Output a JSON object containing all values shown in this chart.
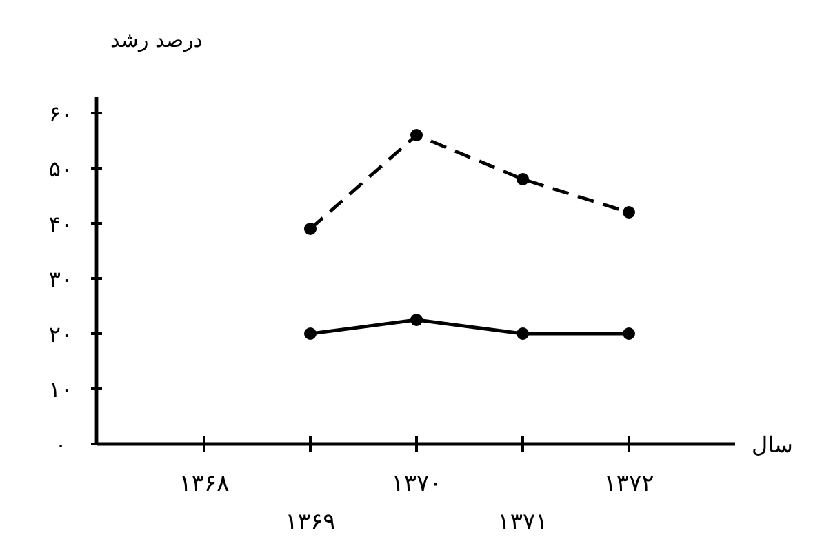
{
  "chart_data": {
    "type": "line",
    "xlabel": "سال",
    "ylabel": "درصد رشد",
    "categories": [
      "۱۳۶۸",
      "۱۳۶۹",
      "۱۳۷۰",
      "۱۳۷۱",
      "۱۳۷۲"
    ],
    "series": [
      {
        "color": "#000000",
        "line_style": "dashed",
        "values": [
          null,
          39,
          56,
          48,
          42
        ]
      },
      {
        "color": "#000000",
        "line_style": "solid",
        "values": [
          null,
          20,
          22.5,
          20,
          20
        ]
      }
    ],
    "ylim": [
      0,
      63
    ],
    "yticks": [
      {
        "value": 0,
        "label": "۰"
      },
      {
        "value": 10,
        "label": "۱۰"
      },
      {
        "value": 20,
        "label": "۲۰"
      },
      {
        "value": 30,
        "label": "۳۰"
      },
      {
        "value": 40,
        "label": "۴۰"
      },
      {
        "value": 50,
        "label": "۵۰"
      },
      {
        "value": 60,
        "label": "۶۰"
      }
    ],
    "marker": "circle",
    "grid": false
  }
}
